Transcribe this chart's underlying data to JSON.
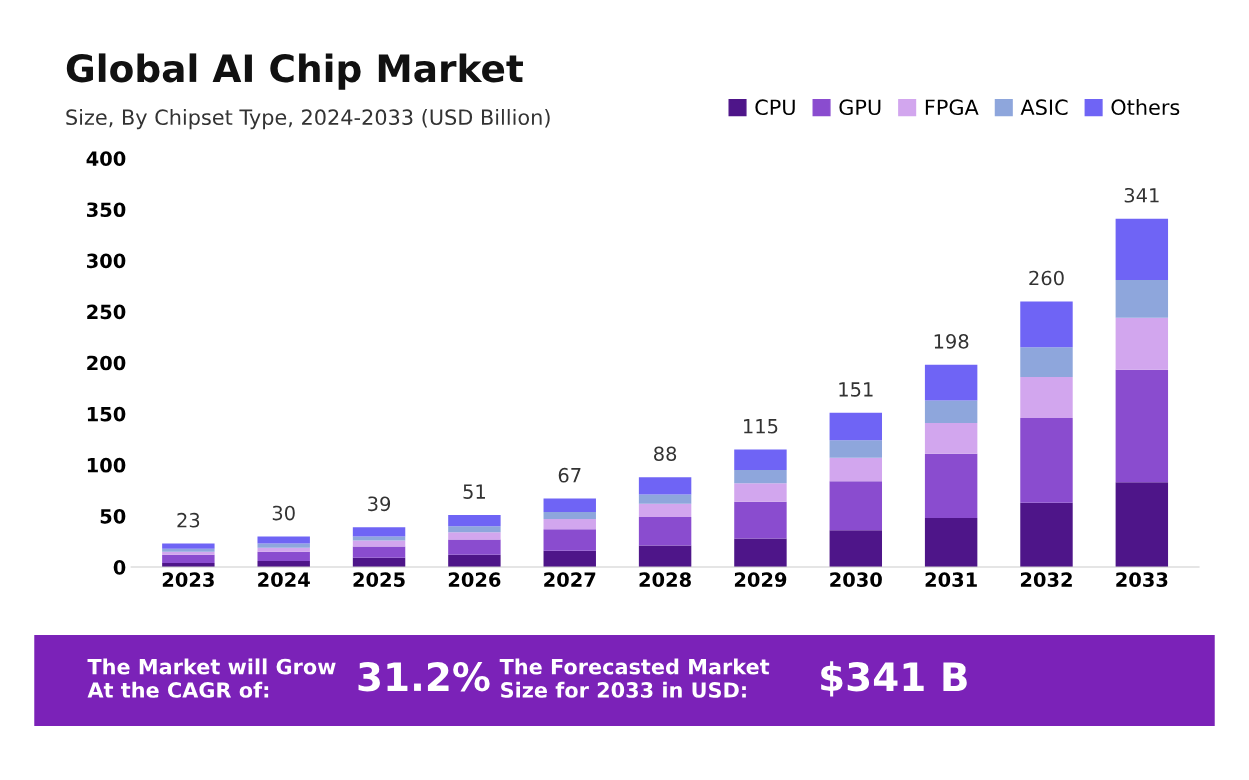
{
  "chart_data": {
    "type": "bar",
    "title": "Global AI Chip Market",
    "subtitle": "Size, By Chipset Type, 2024-2033 (USD Billion)",
    "categories": [
      "2023",
      "2024",
      "2025",
      "2026",
      "2027",
      "2028",
      "2029",
      "2030",
      "2031",
      "2032",
      "2033"
    ],
    "stacked": true,
    "series": [
      {
        "name": "CPU",
        "color": "#4e1589",
        "values": [
          4,
          6,
          9,
          12,
          16,
          21,
          28,
          36,
          48,
          63,
          83
        ]
      },
      {
        "name": "GPU",
        "color": "#8a4ccf",
        "values": [
          8,
          9,
          11,
          15,
          21,
          28,
          36,
          48,
          63,
          83,
          110
        ]
      },
      {
        "name": "FPGA",
        "color": "#d2a6ee",
        "values": [
          3,
          4,
          6,
          7,
          10,
          13,
          18,
          23,
          30,
          40,
          51
        ]
      },
      {
        "name": "ASIC",
        "color": "#8ea6dc",
        "values": [
          3,
          4,
          4,
          6,
          7,
          9,
          13,
          17,
          22,
          29,
          37
        ]
      },
      {
        "name": "Others",
        "color": "#6f64f5",
        "values": [
          5,
          7,
          9,
          11,
          13,
          17,
          20,
          27,
          35,
          45,
          60
        ]
      }
    ],
    "totals": [
      "23",
      "30",
      "39",
      "51",
      "67",
      "88",
      "115",
      "151",
      "198",
      "260",
      "341"
    ],
    "ylim": [
      0,
      400
    ],
    "yticks": [
      0,
      50,
      100,
      150,
      200,
      250,
      300,
      350,
      400
    ],
    "grid": false,
    "legend": "top right",
    "annotations": [
      "The Market will Grow\nAt the CAGR of:",
      "31.2%",
      "The Forecasted Market\nSize for 2033 in USD:",
      "$341 B"
    ]
  }
}
